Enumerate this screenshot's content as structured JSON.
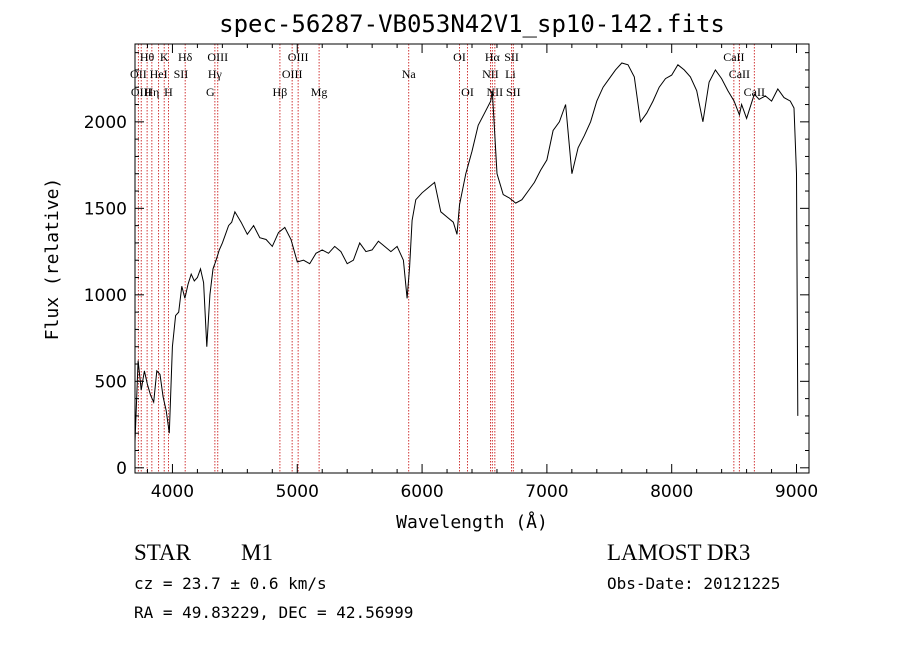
{
  "chart_data": {
    "type": "line",
    "title": "spec-56287-VB053N42V1_sp10-142.fits",
    "xlabel": "Wavelength (Å)",
    "ylabel": "Flux (relative)",
    "xlim": [
      3700,
      9100
    ],
    "ylim": [
      -30,
      2450
    ],
    "xticks": [
      4000,
      5000,
      6000,
      7000,
      8000,
      9000
    ],
    "yticks": [
      0,
      500,
      1000,
      1500,
      2000
    ],
    "grid": false,
    "series": [
      {
        "color": "#000000",
        "x": [
          3700,
          3725,
          3750,
          3775,
          3800,
          3825,
          3850,
          3875,
          3900,
          3925,
          3950,
          3975,
          4000,
          4025,
          4050,
          4075,
          4100,
          4125,
          4150,
          4175,
          4200,
          4225,
          4250,
          4275,
          4300,
          4325,
          4350,
          4375,
          4400,
          4425,
          4450,
          4475,
          4500,
          4550,
          4600,
          4650,
          4700,
          4750,
          4800,
          4850,
          4900,
          4950,
          5000,
          5050,
          5100,
          5150,
          5200,
          5250,
          5300,
          5350,
          5400,
          5450,
          5500,
          5550,
          5600,
          5650,
          5700,
          5750,
          5800,
          5850,
          5880,
          5900,
          5920,
          5950,
          6000,
          6050,
          6100,
          6150,
          6200,
          6250,
          6280,
          6300,
          6350,
          6400,
          6450,
          6500,
          6550,
          6563,
          6600,
          6650,
          6700,
          6750,
          6800,
          6850,
          6900,
          6950,
          7000,
          7050,
          7100,
          7150,
          7200,
          7250,
          7300,
          7350,
          7400,
          7450,
          7500,
          7550,
          7600,
          7650,
          7700,
          7750,
          7800,
          7850,
          7900,
          7950,
          8000,
          8050,
          8100,
          8150,
          8200,
          8250,
          8300,
          8350,
          8400,
          8450,
          8500,
          8542,
          8560,
          8600,
          8662,
          8700,
          8750,
          8800,
          8850,
          8900,
          8950,
          8980,
          9000,
          9010
        ],
        "y": [
          150,
          620,
          450,
          560,
          480,
          420,
          380,
          560,
          540,
          410,
          330,
          200,
          700,
          880,
          900,
          1050,
          980,
          1060,
          1120,
          1080,
          1100,
          1150,
          1070,
          700,
          1000,
          1150,
          1200,
          1260,
          1300,
          1350,
          1400,
          1420,
          1480,
          1420,
          1350,
          1400,
          1330,
          1320,
          1280,
          1360,
          1390,
          1320,
          1190,
          1200,
          1180,
          1240,
          1260,
          1240,
          1280,
          1250,
          1180,
          1200,
          1300,
          1250,
          1260,
          1310,
          1280,
          1250,
          1280,
          1200,
          980,
          1160,
          1430,
          1550,
          1590,
          1620,
          1650,
          1480,
          1450,
          1420,
          1350,
          1520,
          1700,
          1830,
          1980,
          2050,
          2120,
          2180,
          1700,
          1580,
          1560,
          1530,
          1550,
          1600,
          1650,
          1720,
          1780,
          1950,
          2000,
          2100,
          1700,
          1850,
          1920,
          2000,
          2120,
          2200,
          2250,
          2300,
          2340,
          2330,
          2260,
          2000,
          2050,
          2120,
          2200,
          2250,
          2270,
          2330,
          2300,
          2260,
          2180,
          2000,
          2230,
          2300,
          2250,
          2180,
          2120,
          2040,
          2100,
          2020,
          2160,
          2130,
          2150,
          2120,
          2190,
          2140,
          2120,
          2080,
          1700,
          300
        ]
      }
    ],
    "lines": [
      3727,
      3750,
      3797,
      3835,
      3889,
      3934,
      3968,
      4102,
      4340,
      4363,
      4861,
      4959,
      5007,
      5175,
      5893,
      6300,
      6364,
      6548,
      6563,
      6583,
      6717,
      6731,
      8498,
      8542,
      8662
    ],
    "line_labels": [
      {
        "text": "Hθ",
        "x": 3797,
        "row": 0
      },
      {
        "text": "K",
        "x": 3934,
        "row": 0
      },
      {
        "text": "Hδ",
        "x": 4102,
        "row": 0
      },
      {
        "text": "OIII",
        "x": 4363,
        "row": 0
      },
      {
        "text": "OIII",
        "x": 5007,
        "row": 0
      },
      {
        "text": "OI",
        "x": 6300,
        "row": 0
      },
      {
        "text": "Hα",
        "x": 6563,
        "row": 0
      },
      {
        "text": "SII",
        "x": 6717,
        "row": 0
      },
      {
        "text": "CaII",
        "x": 8498,
        "row": 0
      },
      {
        "text": "OII",
        "x": 3727,
        "row": 1
      },
      {
        "text": "HeI",
        "x": 3889,
        "row": 1
      },
      {
        "text": "SII",
        "x": 4068,
        "row": 1
      },
      {
        "text": "Hγ",
        "x": 4340,
        "row": 1
      },
      {
        "text": "OIII",
        "x": 4959,
        "row": 1
      },
      {
        "text": "Na",
        "x": 5893,
        "row": 1
      },
      {
        "text": "NII",
        "x": 6548,
        "row": 1
      },
      {
        "text": "Li",
        "x": 6708,
        "row": 1
      },
      {
        "text": "CaII",
        "x": 8542,
        "row": 1
      },
      {
        "text": "OIII",
        "x": 3750,
        "row": 2
      },
      {
        "text": "Hη",
        "x": 3835,
        "row": 2
      },
      {
        "text": "H",
        "x": 3968,
        "row": 2
      },
      {
        "text": "G",
        "x": 4304,
        "row": 2
      },
      {
        "text": "Hβ",
        "x": 4861,
        "row": 2
      },
      {
        "text": "Mg",
        "x": 5175,
        "row": 2
      },
      {
        "text": "OI",
        "x": 6364,
        "row": 2
      },
      {
        "text": "NII",
        "x": 6583,
        "row": 2
      },
      {
        "text": "SII",
        "x": 6731,
        "row": 2
      },
      {
        "text": "CaII",
        "x": 8662,
        "row": 2
      }
    ]
  },
  "info": {
    "object_type": "STAR",
    "subclass": "M1",
    "survey": "LAMOST DR3",
    "cz": "cz = 23.7 ± 0.6 km/s",
    "obs_date": "Obs-Date: 20121225",
    "coords": "RA =  49.83229, DEC =  42.56999"
  }
}
